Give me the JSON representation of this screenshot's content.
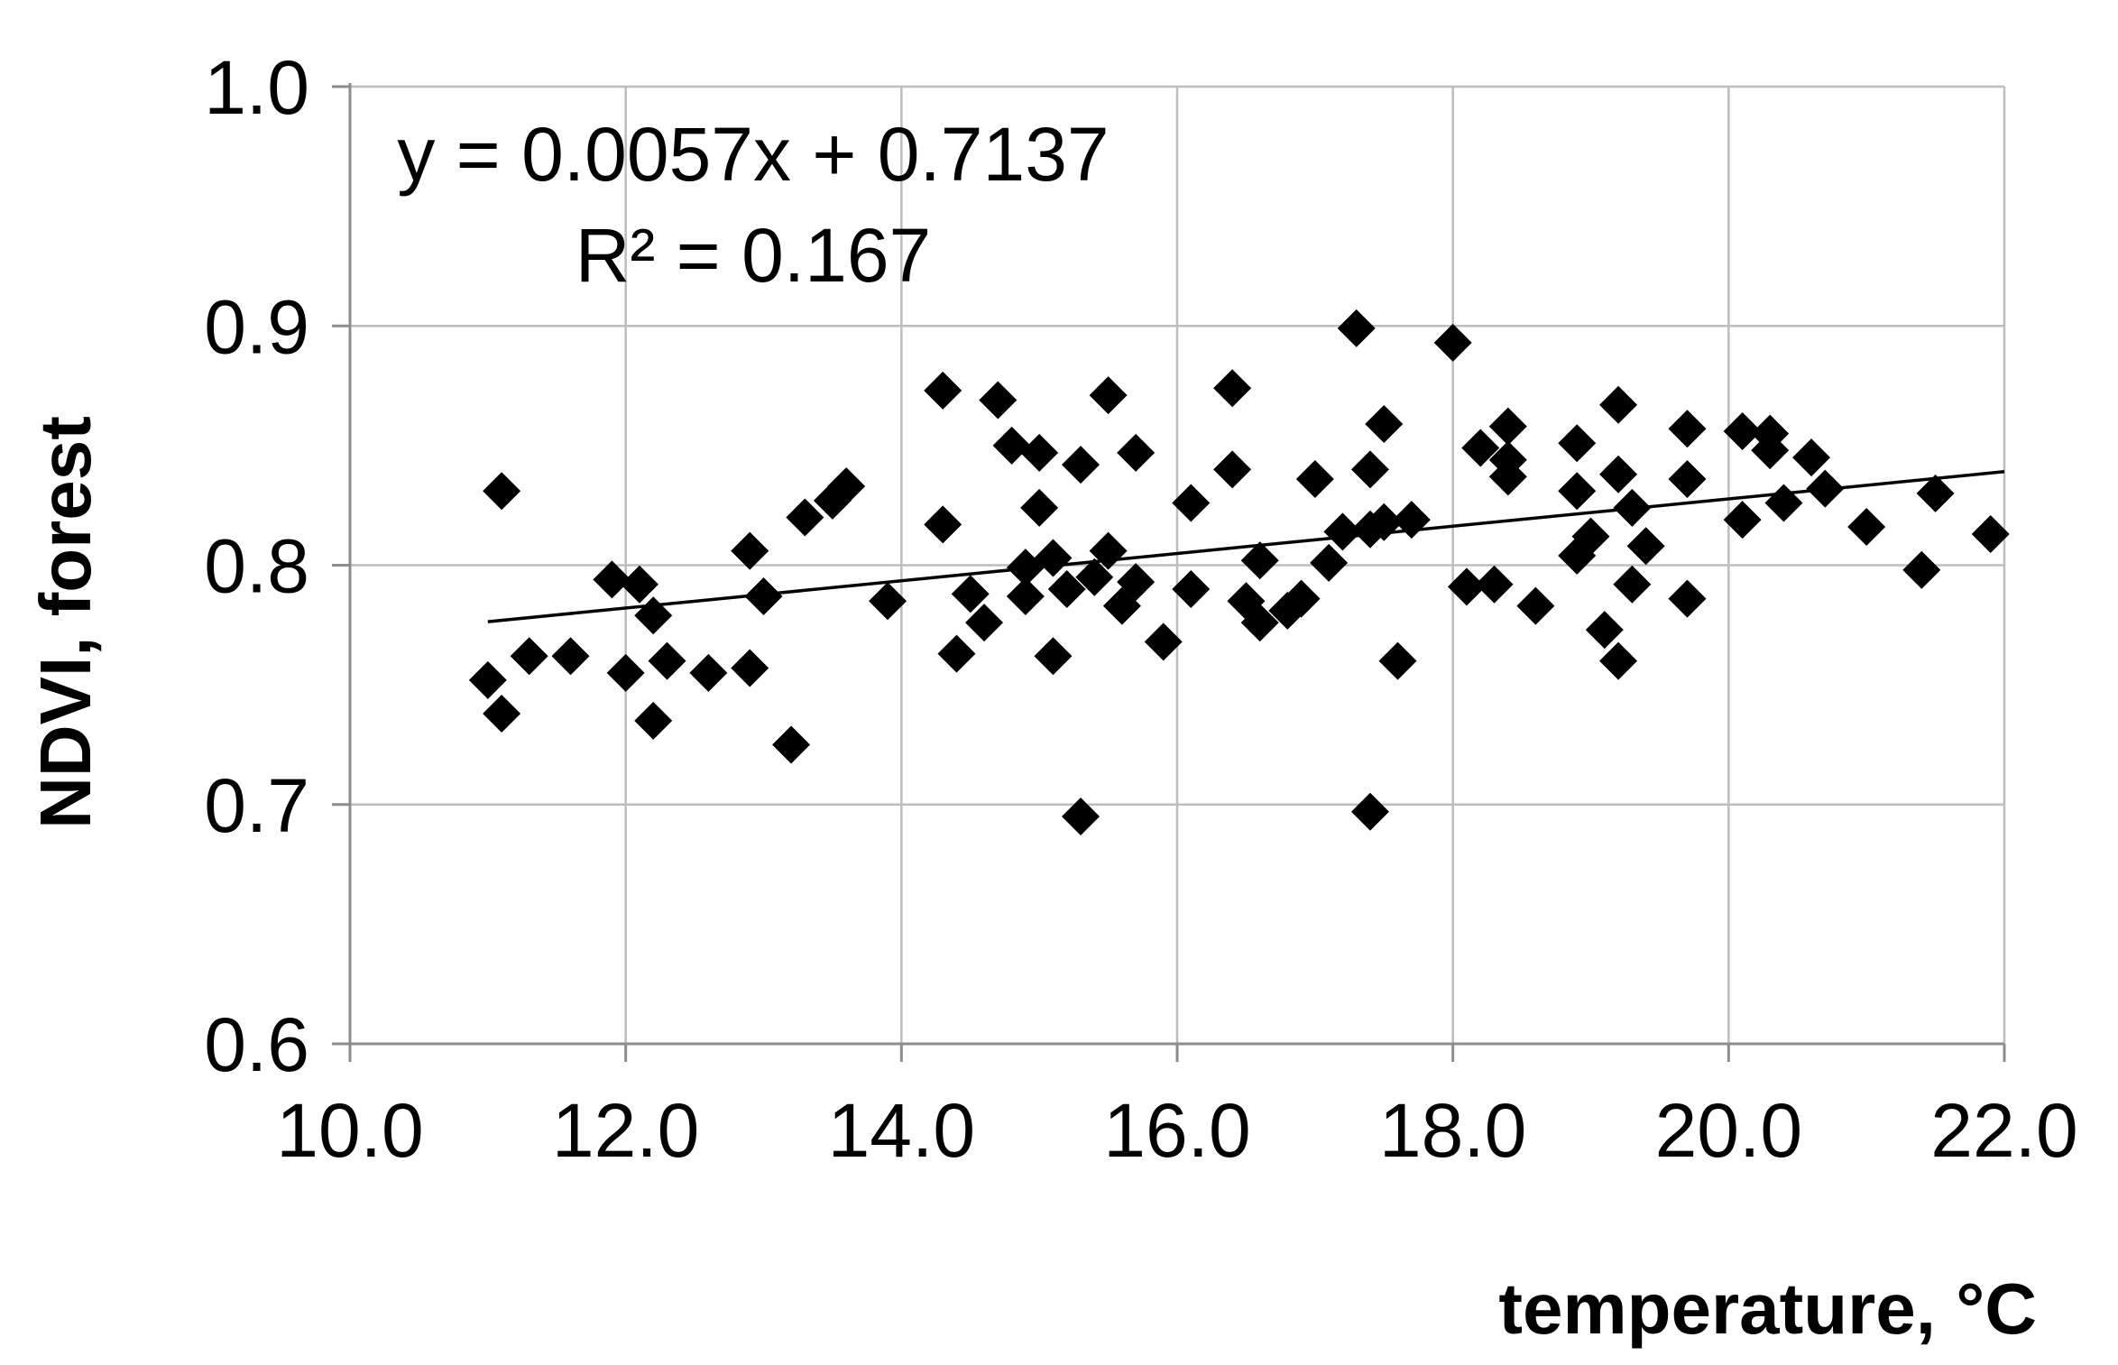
{
  "chart_data": {
    "type": "scatter",
    "title": "",
    "xlabel": "temperature, °C",
    "ylabel": "NDVI, forest",
    "xlim": [
      10.0,
      22.0
    ],
    "ylim": [
      0.6,
      1.0
    ],
    "x_ticks": [
      "10.0",
      "12.0",
      "14.0",
      "16.0",
      "18.0",
      "20.0",
      "22.0"
    ],
    "y_ticks": [
      "0.6",
      "0.7",
      "0.8",
      "0.9",
      "1.0"
    ],
    "grid": true,
    "legend": "none",
    "marker": "diamond",
    "marker_color": "#000000",
    "trendline": {
      "type": "linear",
      "slope": 0.0057,
      "intercept": 0.7137,
      "x_range": [
        11.0,
        22.0
      ],
      "equation": "y = 0.0057x + 0.7137",
      "r_squared": "R² = 0.167"
    },
    "series": [
      {
        "points": [
          [
            11.1,
            0.831
          ],
          [
            11.0,
            0.752
          ],
          [
            11.1,
            0.738
          ],
          [
            11.3,
            0.762
          ],
          [
            11.6,
            0.762
          ],
          [
            11.9,
            0.794
          ],
          [
            12.0,
            0.755
          ],
          [
            12.1,
            0.792
          ],
          [
            12.2,
            0.779
          ],
          [
            12.3,
            0.76
          ],
          [
            12.2,
            0.735
          ],
          [
            12.6,
            0.755
          ],
          [
            12.9,
            0.757
          ],
          [
            12.9,
            0.806
          ],
          [
            13.0,
            0.787
          ],
          [
            13.2,
            0.725
          ],
          [
            13.3,
            0.82
          ],
          [
            13.5,
            0.827
          ],
          [
            13.6,
            0.833
          ],
          [
            13.9,
            0.785
          ],
          [
            14.3,
            0.873
          ],
          [
            14.3,
            0.817
          ],
          [
            14.4,
            0.763
          ],
          [
            14.5,
            0.788
          ],
          [
            14.6,
            0.776
          ],
          [
            14.7,
            0.869
          ],
          [
            14.8,
            0.85
          ],
          [
            14.9,
            0.799
          ],
          [
            14.9,
            0.787
          ],
          [
            15.0,
            0.824
          ],
          [
            15.0,
            0.847
          ],
          [
            15.1,
            0.803
          ],
          [
            15.1,
            0.762
          ],
          [
            15.2,
            0.79
          ],
          [
            15.3,
            0.842
          ],
          [
            15.3,
            0.695
          ],
          [
            15.4,
            0.795
          ],
          [
            15.5,
            0.871
          ],
          [
            15.5,
            0.806
          ],
          [
            15.6,
            0.783
          ],
          [
            15.7,
            0.847
          ],
          [
            15.7,
            0.793
          ],
          [
            15.9,
            0.768
          ],
          [
            16.1,
            0.826
          ],
          [
            16.1,
            0.79
          ],
          [
            16.4,
            0.874
          ],
          [
            16.4,
            0.84
          ],
          [
            16.5,
            0.785
          ],
          [
            16.6,
            0.802
          ],
          [
            16.6,
            0.776
          ],
          [
            16.8,
            0.781
          ],
          [
            16.9,
            0.786
          ],
          [
            17.0,
            0.836
          ],
          [
            17.1,
            0.801
          ],
          [
            17.2,
            0.814
          ],
          [
            17.3,
            0.899
          ],
          [
            17.4,
            0.84
          ],
          [
            17.4,
            0.815
          ],
          [
            17.4,
            0.697
          ],
          [
            17.5,
            0.818
          ],
          [
            17.5,
            0.859
          ],
          [
            17.6,
            0.76
          ],
          [
            17.7,
            0.819
          ],
          [
            18.0,
            0.893
          ],
          [
            18.1,
            0.791
          ],
          [
            18.2,
            0.849
          ],
          [
            18.3,
            0.792
          ],
          [
            18.4,
            0.858
          ],
          [
            18.4,
            0.837
          ],
          [
            18.4,
            0.844
          ],
          [
            18.6,
            0.783
          ],
          [
            18.9,
            0.851
          ],
          [
            18.9,
            0.804
          ],
          [
            18.9,
            0.831
          ],
          [
            19.0,
            0.812
          ],
          [
            19.1,
            0.773
          ],
          [
            19.2,
            0.867
          ],
          [
            19.2,
            0.838
          ],
          [
            19.2,
            0.76
          ],
          [
            19.3,
            0.824
          ],
          [
            19.3,
            0.792
          ],
          [
            19.4,
            0.808
          ],
          [
            19.7,
            0.857
          ],
          [
            19.7,
            0.836
          ],
          [
            19.7,
            0.786
          ],
          [
            20.1,
            0.856
          ],
          [
            20.1,
            0.819
          ],
          [
            20.3,
            0.855
          ],
          [
            20.3,
            0.848
          ],
          [
            20.4,
            0.826
          ],
          [
            20.6,
            0.845
          ],
          [
            20.7,
            0.832
          ],
          [
            21.0,
            0.816
          ],
          [
            21.4,
            0.798
          ],
          [
            21.5,
            0.83
          ],
          [
            21.9,
            0.813
          ]
        ]
      }
    ]
  }
}
